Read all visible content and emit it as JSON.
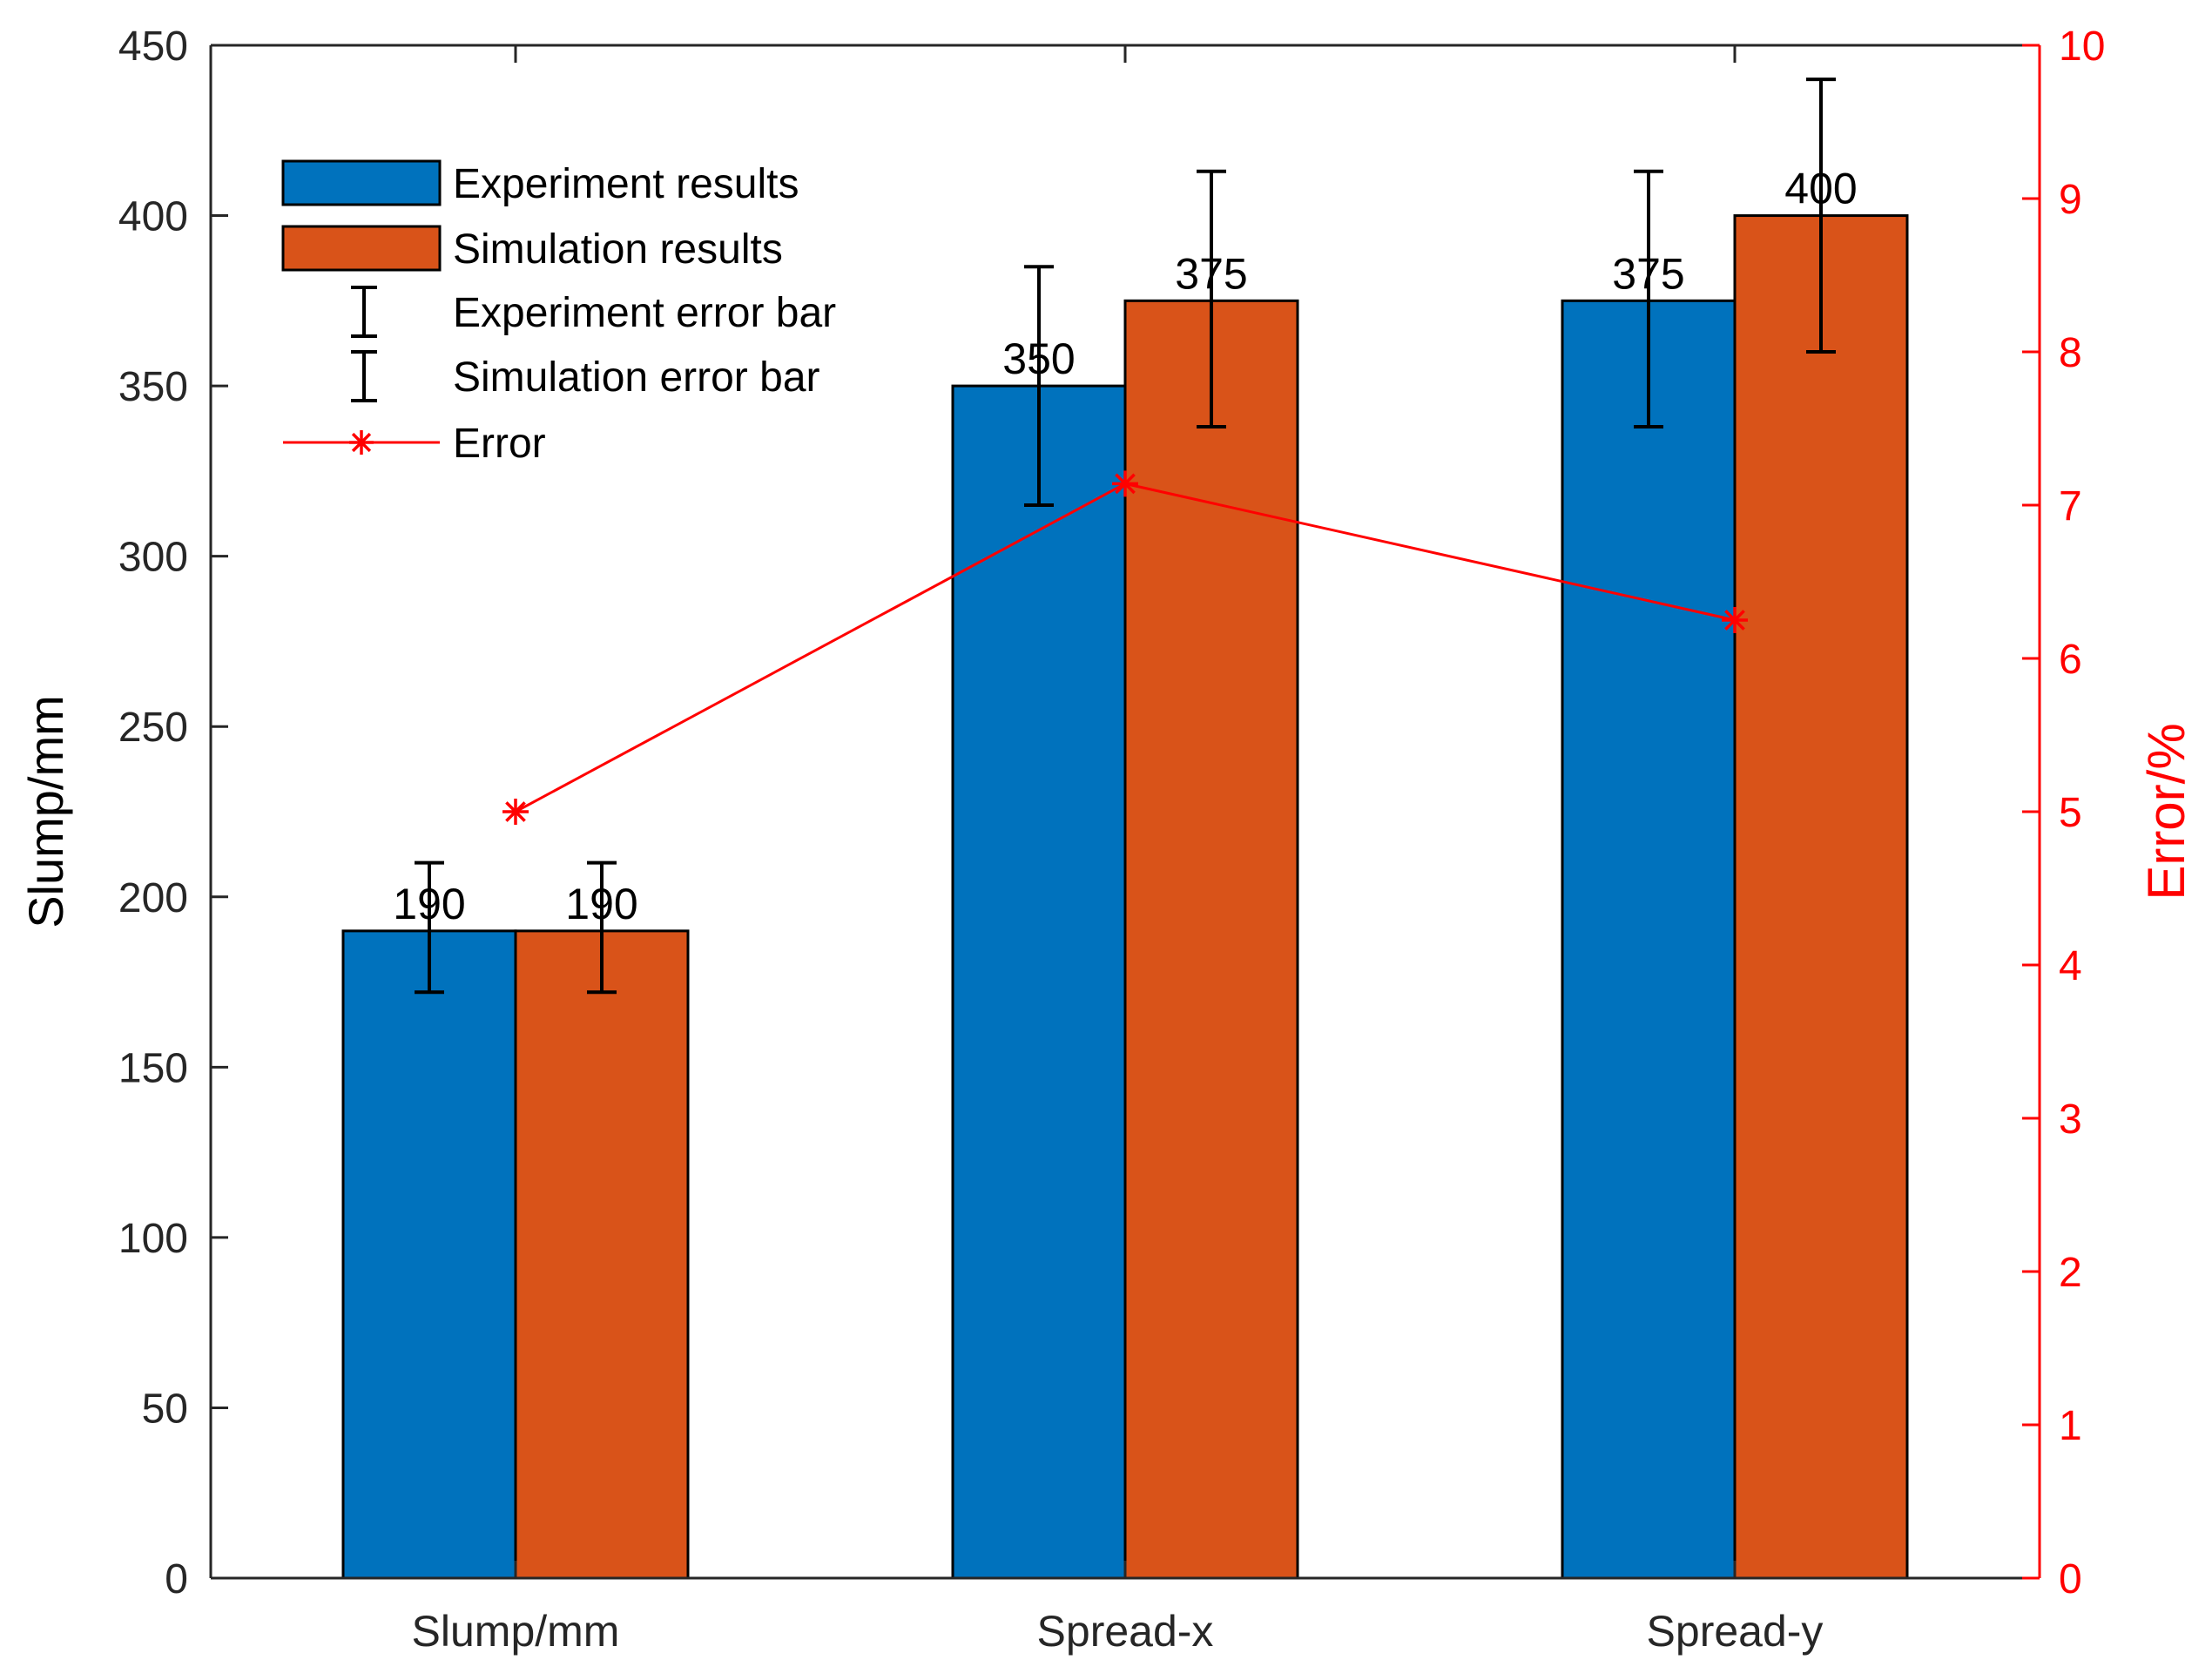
{
  "chart_data": {
    "type": "bar",
    "categories": [
      "Slump/mm",
      "Spread-x",
      "Spread-y"
    ],
    "series": [
      {
        "name": "Experiment results",
        "values": [
          190,
          350,
          375
        ],
        "error_low": [
          172,
          315,
          338
        ],
        "error_high": [
          210,
          385,
          413
        ],
        "color": "#0072BD"
      },
      {
        "name": "Simulation results",
        "values": [
          190,
          375,
          400
        ],
        "error_low": [
          172,
          338,
          360
        ],
        "error_high": [
          210,
          413,
          440
        ],
        "color": "#D95319"
      }
    ],
    "error_line": {
      "name": "Error",
      "values": [
        5.0,
        7.14,
        6.25
      ],
      "color": "#FF0000"
    },
    "data_labels": [
      [
        "190",
        "350",
        "375"
      ],
      [
        "190",
        "375",
        "400"
      ]
    ],
    "ylabel": "Slump/mm",
    "ylabel_right": "Error/%",
    "ylim": [
      0,
      450
    ],
    "yticks": [
      "0",
      "50",
      "100",
      "150",
      "200",
      "250",
      "300",
      "350",
      "400",
      "450"
    ],
    "ylim_right": [
      0,
      10
    ],
    "yticks_right": [
      "0",
      "1",
      "2",
      "3",
      "4",
      "5",
      "6",
      "7",
      "8",
      "9",
      "10"
    ],
    "legend": {
      "placement": "top-left",
      "entries": [
        "Experiment results",
        "Simulation results",
        "Experiment error bar",
        "Simulation error bar",
        "Error"
      ]
    },
    "grid": false
  }
}
